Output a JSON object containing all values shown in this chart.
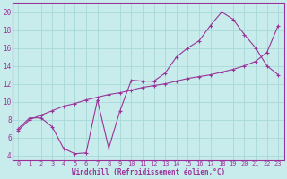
{
  "xlabel": "Windchill (Refroidissement éolien,°C)",
  "bg_color": "#c8ecec",
  "grid_color": "#a8d8d8",
  "line_color": "#993399",
  "xlim": [
    -0.5,
    23.5
  ],
  "ylim": [
    3.5,
    21.0
  ],
  "xticks": [
    0,
    1,
    2,
    3,
    4,
    5,
    6,
    7,
    8,
    9,
    10,
    11,
    12,
    13,
    14,
    15,
    16,
    17,
    18,
    19,
    20,
    21,
    22,
    23
  ],
  "yticks": [
    4,
    6,
    8,
    10,
    12,
    14,
    16,
    18,
    20
  ],
  "line1_x": [
    0,
    1,
    2,
    3,
    4,
    5,
    6,
    7,
    8,
    9,
    10,
    11,
    12,
    13,
    14,
    15,
    16,
    17,
    18,
    19,
    20,
    21,
    22,
    23
  ],
  "line1_y": [
    7.0,
    8.2,
    8.2,
    7.2,
    4.8,
    4.2,
    4.3,
    10.2,
    4.8,
    9.0,
    12.4,
    12.3,
    12.3,
    13.2,
    15.0,
    16.0,
    16.8,
    18.5,
    20.0,
    19.2,
    17.5,
    16.0,
    14.0,
    13.0
  ],
  "line2_x": [
    0,
    1,
    2,
    3,
    4,
    5,
    6,
    7,
    8,
    9,
    10,
    11,
    12,
    13,
    14,
    15,
    16,
    17,
    18,
    19,
    20,
    21,
    22,
    23
  ],
  "line2_y": [
    6.8,
    8.0,
    8.5,
    9.0,
    9.5,
    9.8,
    10.2,
    10.5,
    10.8,
    11.0,
    11.3,
    11.6,
    11.8,
    12.0,
    12.3,
    12.6,
    12.8,
    13.0,
    13.3,
    13.6,
    14.0,
    14.5,
    15.5,
    18.5
  ],
  "xlabel_fontsize": 5.5,
  "tick_fontsize": 5.0,
  "linewidth": 0.8,
  "markersize": 3.0
}
